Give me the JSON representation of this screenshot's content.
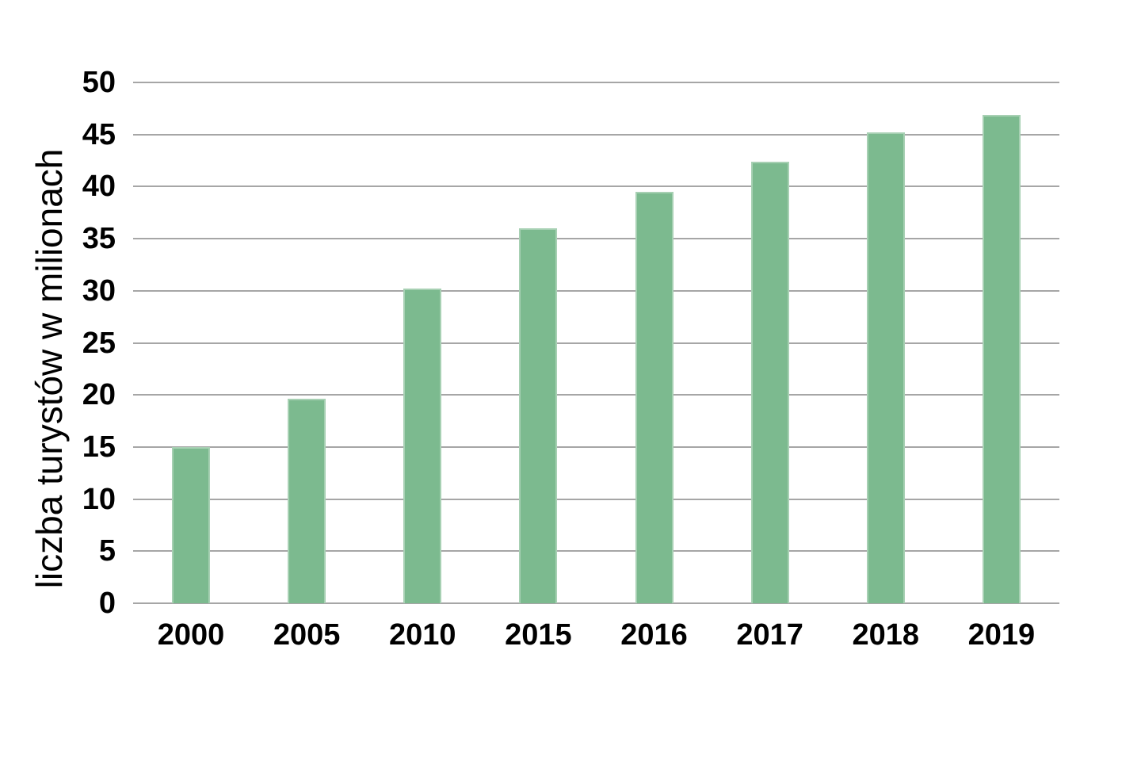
{
  "chart_data": {
    "type": "bar",
    "title": "",
    "xlabel": "",
    "ylabel": "liczba turystów w milionach",
    "categories": [
      "2000",
      "2005",
      "2010",
      "2015",
      "2016",
      "2017",
      "2018",
      "2019"
    ],
    "values": [
      15.0,
      19.6,
      30.2,
      36.0,
      39.5,
      42.4,
      45.2,
      46.9
    ],
    "ylim": [
      0,
      50
    ],
    "yticks": [
      0,
      5,
      10,
      15,
      20,
      25,
      30,
      35,
      40,
      45,
      50
    ],
    "grid": true,
    "legend_position": "none",
    "colors": {
      "bar_fill": "#7cba8f",
      "bar_edge": "#a7d0b3",
      "gridline": "#a6a6a6",
      "text": "#000000",
      "background": "#ffffff"
    }
  }
}
